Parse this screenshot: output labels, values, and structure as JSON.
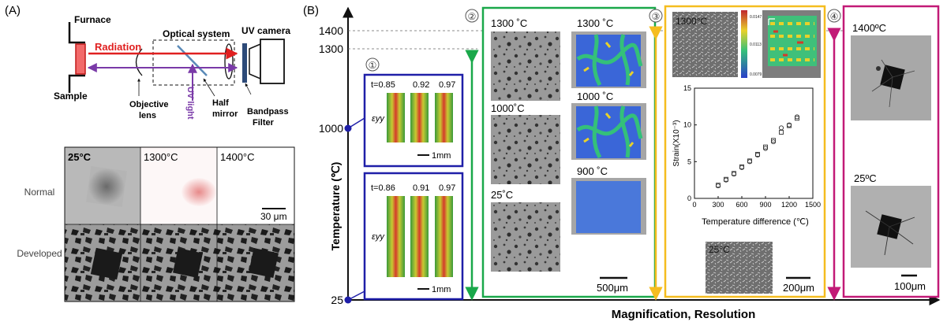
{
  "panel_a": {
    "label": "(A)",
    "setup": {
      "furnace": "Furnace",
      "radiation": "Radiation",
      "optical_system": "Optical system",
      "uv_camera": "UV camera",
      "sample": "Sample",
      "objective_lens": [
        "Objective",
        "lens"
      ],
      "uv_light": "UV light",
      "half_mirror": [
        "Half",
        "mirror"
      ],
      "bandpass_filter": [
        "Bandpass",
        "Filter"
      ]
    },
    "grid": {
      "columns": [
        "25°C",
        "1300°C",
        "1400°C"
      ],
      "rows": [
        "Normal",
        "Developed"
      ],
      "scale_bar": "30 μm"
    }
  },
  "panel_b": {
    "label": "(B)",
    "y_axis_label": "Temperature (℃)",
    "x_axis_label": "Magnification, Resolution",
    "y_ticks": [
      "1400",
      "1300",
      "1000",
      "25"
    ],
    "colors": {
      "blue": "#1f1fa8",
      "green": "#1aa84a",
      "yellow": "#f5bd1f",
      "magenta": "#c21a77",
      "red": "#e02020",
      "purple": "#7a3aa8"
    },
    "section1": {
      "number": "①",
      "top": {
        "t_values": [
          "t=0.85",
          "0.92",
          "0.97"
        ],
        "strain_label": "εyy",
        "scale_bar": "1mm"
      },
      "bottom": {
        "t_values": [
          "t=0.86",
          "0.91",
          "0.97"
        ],
        "strain_label": "εyy",
        "scale_bar": "1mm"
      }
    },
    "section2": {
      "number": "②",
      "left_temps": [
        "1300 ˚C",
        "1000˚C",
        "25˚C"
      ],
      "right_temps": [
        "1300 ˚C",
        "1000 ˚C",
        "900 ˚C"
      ],
      "scale_bar": "500μm"
    },
    "section3": {
      "number": "③",
      "top_temp": "1300°C",
      "colorbar_ticks": [
        "0.0147",
        "0.0113",
        "0.0079"
      ],
      "bottom_temp": "25°C",
      "scale_bar": "200μm"
    },
    "section4": {
      "number": "④",
      "temps": [
        "1400ºC",
        "25ºC"
      ],
      "scale_bar": "100μm"
    }
  },
  "chart_data": {
    "type": "scatter",
    "xlabel": "Temperature difference (℃)",
    "ylabel": "Strain(X10⁻³)",
    "xlim": [
      0,
      1500
    ],
    "ylim": [
      0,
      15
    ],
    "x_ticks": [
      0,
      300,
      600,
      900,
      1200,
      1500
    ],
    "y_ticks": [
      0,
      5,
      10,
      15
    ],
    "series": [
      {
        "marker": "square",
        "points": [
          [
            300,
            1.8
          ],
          [
            400,
            2.6
          ],
          [
            500,
            3.4
          ],
          [
            600,
            4.3
          ],
          [
            700,
            5.1
          ],
          [
            800,
            6.0
          ],
          [
            900,
            7.0
          ],
          [
            1000,
            7.9
          ],
          [
            1100,
            9.0
          ],
          [
            1200,
            9.9
          ],
          [
            1300,
            10.9
          ]
        ]
      },
      {
        "marker": "circle",
        "points": [
          [
            300,
            1.7
          ],
          [
            400,
            2.5
          ],
          [
            500,
            3.3
          ],
          [
            600,
            4.2
          ],
          [
            700,
            5.0
          ],
          [
            800,
            5.9
          ],
          [
            900,
            6.8
          ],
          [
            1000,
            7.7
          ],
          [
            1100,
            9.6
          ],
          [
            1200,
            10.0
          ],
          [
            1300,
            11.1
          ]
        ]
      }
    ]
  }
}
